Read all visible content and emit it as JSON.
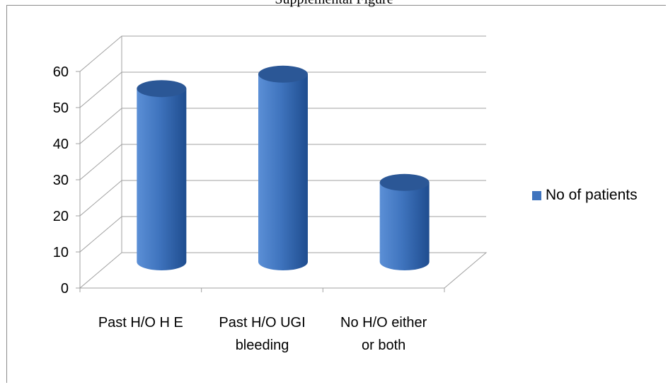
{
  "page_heading": "Supplemental Figure",
  "colors": {
    "bar_light": "#5b8fd6",
    "bar_mid": "#3f74be",
    "bar_dark": "#1f4d8f",
    "bar_top": "#2b5796",
    "grid": "#a0a0a0"
  },
  "chart_data": {
    "type": "bar",
    "style": "3d-cylinder",
    "categories": [
      [
        "Past H/O H E"
      ],
      [
        "Past H/O UGI",
        "bleeding"
      ],
      [
        "No H/O either",
        "or both"
      ]
    ],
    "series": [
      {
        "name": "No of patients",
        "values": [
          48,
          52,
          22
        ]
      }
    ],
    "ylim": [
      0,
      60
    ],
    "yticks": [
      0,
      10,
      20,
      30,
      40,
      50,
      60
    ],
    "grid": true,
    "legend_position": "right"
  }
}
